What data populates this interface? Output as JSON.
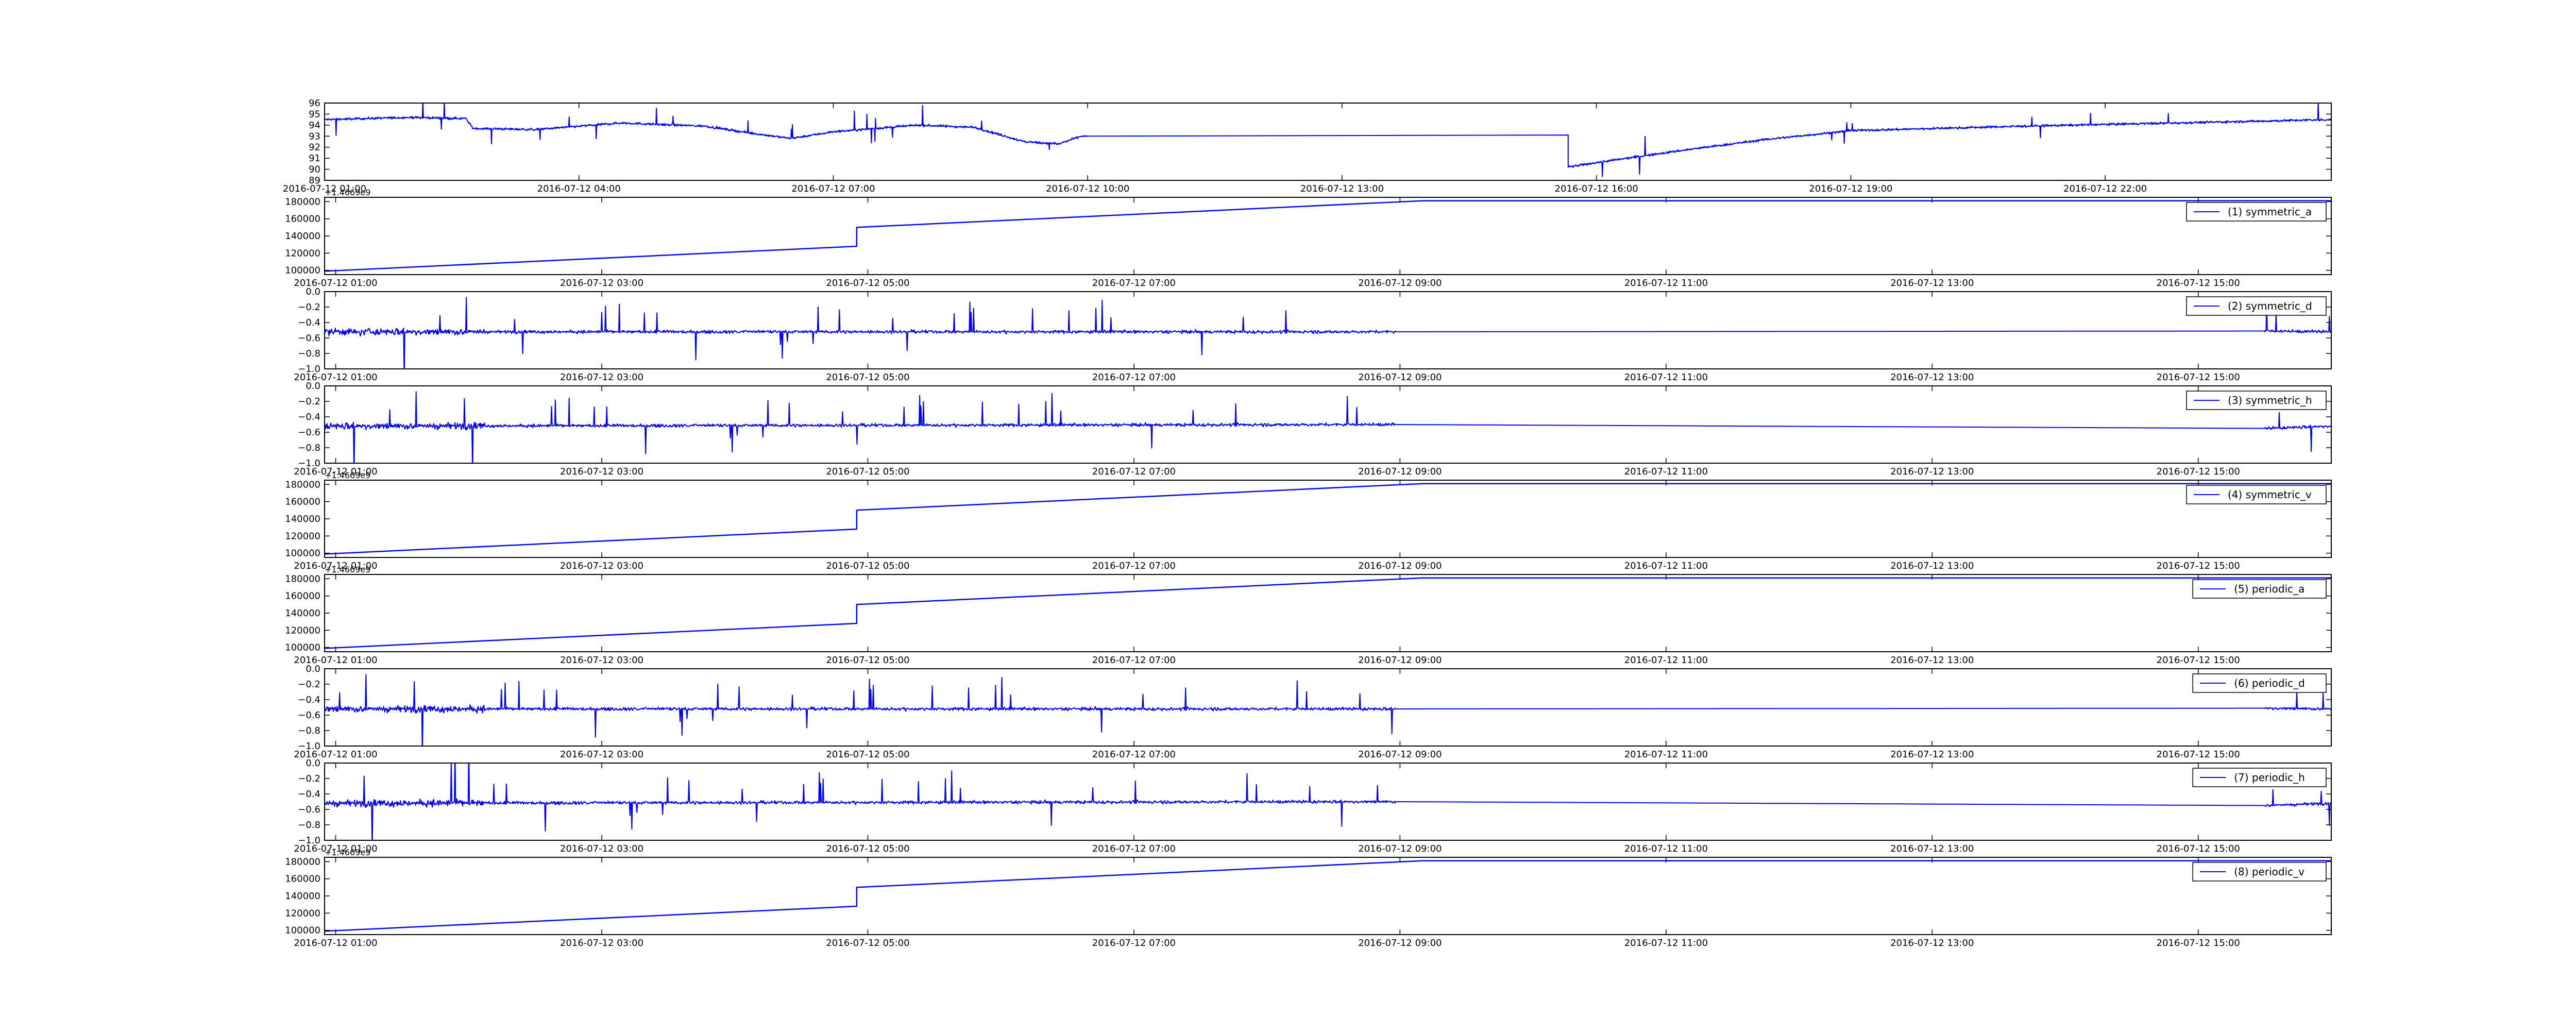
{
  "chart_data": [
    {
      "type": "line",
      "title": "",
      "xlabel": "",
      "ylabel": "",
      "x_range": [
        "2016-07-12 01:00",
        "2016-07-13 00:40"
      ],
      "ylim": [
        89,
        96
      ],
      "x_ticks": [
        "2016-07-12 01:00",
        "2016-07-12 04:00",
        "2016-07-12 07:00",
        "2016-07-12 10:00",
        "2016-07-12 13:00",
        "2016-07-12 16:00",
        "2016-07-12 19:00",
        "2016-07-12 22:00"
      ],
      "y_ticks": [
        89,
        90,
        91,
        92,
        93,
        94,
        95,
        96
      ],
      "grid": false,
      "legend": null,
      "series": [
        {
          "color": "#0000ff",
          "noise": 0.5,
          "spike_prob": 0.01,
          "points": [
            [
              "2016-07-12 01:00",
              94.5
            ],
            [
              "2016-07-12 02:00",
              94.7
            ],
            [
              "2016-07-12 02:40",
              94.6
            ],
            [
              "2016-07-12 02:45",
              93.7
            ],
            [
              "2016-07-12 03:30",
              93.6
            ],
            [
              "2016-07-12 04:30",
              94.2
            ],
            [
              "2016-07-12 05:30",
              93.9
            ],
            [
              "2016-07-12 06:00",
              93.3
            ],
            [
              "2016-07-12 06:30",
              92.8
            ],
            [
              "2016-07-12 07:00",
              93.4
            ],
            [
              "2016-07-12 08:00",
              94.0
            ],
            [
              "2016-07-12 08:40",
              93.8
            ],
            [
              "2016-07-12 09:15",
              92.5
            ],
            [
              "2016-07-12 09:40",
              92.3
            ],
            [
              "2016-07-12 09:55",
              93.0
            ],
            [
              "2016-07-12 10:00",
              93.0
            ],
            [
              "2016-07-12 15:40",
              93.1
            ],
            [
              "2016-07-12 15:40",
              90.2
            ],
            [
              "2016-07-12 16:00",
              90.6
            ],
            [
              "2016-07-12 17:00",
              91.7
            ],
            [
              "2016-07-12 18:00",
              92.7
            ],
            [
              "2016-07-12 19:00",
              93.5
            ],
            [
              "2016-07-12 21:00",
              93.9
            ],
            [
              "2016-07-13 00:40",
              94.5
            ]
          ],
          "noise_skip": [
            [
              "2016-07-12 10:00",
              "2016-07-12 15:40"
            ]
          ]
        }
      ]
    },
    {
      "type": "line",
      "title": "",
      "xlabel": "",
      "ylabel": "",
      "y_offset_label": "+1.4669e9",
      "x_range": [
        "2016-07-12 00:55",
        "2016-07-12 16:00"
      ],
      "ylim": [
        95000,
        185000
      ],
      "x_ticks": [
        "2016-07-12 01:00",
        "2016-07-12 03:00",
        "2016-07-12 05:00",
        "2016-07-12 07:00",
        "2016-07-12 09:00",
        "2016-07-12 11:00",
        "2016-07-12 13:00",
        "2016-07-12 15:00"
      ],
      "y_ticks": [
        100000,
        120000,
        140000,
        160000,
        180000
      ],
      "grid": false,
      "legend": "top-right",
      "series": [
        {
          "name": "(1) symmetric_a",
          "color": "#0000ff",
          "points": [
            [
              "2016-07-12 00:55",
              99000
            ],
            [
              "2016-07-12 04:55",
              128000
            ],
            [
              "2016-07-12 04:55",
              150000
            ],
            [
              "2016-07-12 09:10",
              181000
            ],
            [
              "2016-07-12 16:00",
              181000
            ]
          ]
        }
      ]
    },
    {
      "type": "line",
      "title": "",
      "xlabel": "",
      "ylabel": "",
      "x_range": [
        "2016-07-12 00:55",
        "2016-07-12 16:00"
      ],
      "ylim": [
        -1.0,
        0.0
      ],
      "x_ticks": [
        "2016-07-12 01:00",
        "2016-07-12 03:00",
        "2016-07-12 05:00",
        "2016-07-12 07:00",
        "2016-07-12 09:00",
        "2016-07-12 11:00",
        "2016-07-12 13:00",
        "2016-07-12 15:00"
      ],
      "y_ticks": [
        -1.0,
        -0.8,
        -0.6,
        -0.4,
        -0.2,
        0.0
      ],
      "grid": false,
      "legend": "top-right",
      "series": [
        {
          "name": "(2) symmetric_d",
          "color": "#0000ff",
          "baseline": -0.52,
          "noisy_ranges": [
            [
              "2016-07-12 00:55",
              "2016-07-12 08:58"
            ],
            [
              "2016-07-12 15:30",
              "2016-07-12 16:00"
            ]
          ],
          "points": [
            [
              "2016-07-12 00:55",
              -0.52
            ],
            [
              "2016-07-12 08:58",
              -0.52
            ],
            [
              "2016-07-12 15:30",
              -0.51
            ],
            [
              "2016-07-12 16:00",
              -0.52
            ]
          ]
        }
      ]
    },
    {
      "type": "line",
      "title": "",
      "xlabel": "",
      "ylabel": "",
      "x_range": [
        "2016-07-12 00:55",
        "2016-07-12 16:00"
      ],
      "ylim": [
        -1.0,
        0.0
      ],
      "x_ticks": [
        "2016-07-12 01:00",
        "2016-07-12 03:00",
        "2016-07-12 05:00",
        "2016-07-12 07:00",
        "2016-07-12 09:00",
        "2016-07-12 11:00",
        "2016-07-12 13:00",
        "2016-07-12 15:00"
      ],
      "y_ticks": [
        -1.0,
        -0.8,
        -0.6,
        -0.4,
        -0.2,
        0.0
      ],
      "grid": false,
      "legend": "top-right",
      "series": [
        {
          "name": "(3) symmetric_h",
          "color": "#0000ff",
          "baseline": -0.52,
          "noisy_ranges": [
            [
              "2016-07-12 00:55",
              "2016-07-12 08:58"
            ],
            [
              "2016-07-12 15:30",
              "2016-07-12 16:00"
            ]
          ],
          "points": [
            [
              "2016-07-12 00:55",
              -0.52
            ],
            [
              "2016-07-12 08:58",
              -0.5
            ],
            [
              "2016-07-12 15:30",
              -0.55
            ],
            [
              "2016-07-12 16:00",
              -0.52
            ]
          ]
        }
      ]
    },
    {
      "type": "line",
      "title": "",
      "xlabel": "",
      "ylabel": "",
      "y_offset_label": "+1.4669e9",
      "x_range": [
        "2016-07-12 00:55",
        "2016-07-12 16:00"
      ],
      "ylim": [
        95000,
        185000
      ],
      "x_ticks": [
        "2016-07-12 01:00",
        "2016-07-12 03:00",
        "2016-07-12 05:00",
        "2016-07-12 07:00",
        "2016-07-12 09:00",
        "2016-07-12 11:00",
        "2016-07-12 13:00",
        "2016-07-12 15:00"
      ],
      "y_ticks": [
        100000,
        120000,
        140000,
        160000,
        180000
      ],
      "grid": false,
      "legend": "top-right",
      "series": [
        {
          "name": "(4) symmetric_v",
          "color": "#0000ff",
          "points": [
            [
              "2016-07-12 00:55",
              99000
            ],
            [
              "2016-07-12 04:55",
              128000
            ],
            [
              "2016-07-12 04:55",
              150000
            ],
            [
              "2016-07-12 09:10",
              181000
            ],
            [
              "2016-07-12 16:00",
              181000
            ]
          ]
        }
      ]
    },
    {
      "type": "line",
      "title": "",
      "xlabel": "",
      "ylabel": "",
      "y_offset_label": "+1.4669e9",
      "x_range": [
        "2016-07-12 00:55",
        "2016-07-12 16:00"
      ],
      "ylim": [
        95000,
        185000
      ],
      "x_ticks": [
        "2016-07-12 01:00",
        "2016-07-12 03:00",
        "2016-07-12 05:00",
        "2016-07-12 07:00",
        "2016-07-12 09:00",
        "2016-07-12 11:00",
        "2016-07-12 13:00",
        "2016-07-12 15:00"
      ],
      "y_ticks": [
        100000,
        120000,
        140000,
        160000,
        180000
      ],
      "grid": false,
      "legend": "top-right",
      "series": [
        {
          "name": "(5) periodic_a",
          "color": "#0000ff",
          "points": [
            [
              "2016-07-12 00:55",
              99000
            ],
            [
              "2016-07-12 04:55",
              128000
            ],
            [
              "2016-07-12 04:55",
              150000
            ],
            [
              "2016-07-12 09:10",
              181000
            ],
            [
              "2016-07-12 16:00",
              181000
            ]
          ]
        }
      ]
    },
    {
      "type": "line",
      "title": "",
      "xlabel": "",
      "ylabel": "",
      "x_range": [
        "2016-07-12 00:55",
        "2016-07-12 16:00"
      ],
      "ylim": [
        -1.0,
        0.0
      ],
      "x_ticks": [
        "2016-07-12 01:00",
        "2016-07-12 03:00",
        "2016-07-12 05:00",
        "2016-07-12 07:00",
        "2016-07-12 09:00",
        "2016-07-12 11:00",
        "2016-07-12 13:00",
        "2016-07-12 15:00"
      ],
      "y_ticks": [
        -1.0,
        -0.8,
        -0.6,
        -0.4,
        -0.2,
        0.0
      ],
      "grid": false,
      "legend": "top-right",
      "series": [
        {
          "name": "(6) periodic_d",
          "color": "#0000ff",
          "baseline": -0.52,
          "noisy_ranges": [
            [
              "2016-07-12 00:55",
              "2016-07-12 08:58"
            ],
            [
              "2016-07-12 15:30",
              "2016-07-12 16:00"
            ]
          ],
          "points": [
            [
              "2016-07-12 00:55",
              -0.52
            ],
            [
              "2016-07-12 08:58",
              -0.52
            ],
            [
              "2016-07-12 15:30",
              -0.51
            ],
            [
              "2016-07-12 16:00",
              -0.52
            ]
          ]
        }
      ]
    },
    {
      "type": "line",
      "title": "",
      "xlabel": "",
      "ylabel": "",
      "x_range": [
        "2016-07-12 00:55",
        "2016-07-12 16:00"
      ],
      "ylim": [
        -1.0,
        0.0
      ],
      "x_ticks": [
        "2016-07-12 01:00",
        "2016-07-12 03:00",
        "2016-07-12 05:00",
        "2016-07-12 07:00",
        "2016-07-12 09:00",
        "2016-07-12 11:00",
        "2016-07-12 13:00",
        "2016-07-12 15:00"
      ],
      "y_ticks": [
        -1.0,
        -0.8,
        -0.6,
        -0.4,
        -0.2,
        0.0
      ],
      "grid": false,
      "legend": "top-right",
      "series": [
        {
          "name": "(7) periodic_h",
          "color": "#0000ff",
          "baseline": -0.52,
          "noisy_ranges": [
            [
              "2016-07-12 00:55",
              "2016-07-12 08:58"
            ],
            [
              "2016-07-12 15:30",
              "2016-07-12 16:00"
            ]
          ],
          "points": [
            [
              "2016-07-12 00:55",
              -0.52
            ],
            [
              "2016-07-12 08:58",
              -0.5
            ],
            [
              "2016-07-12 15:30",
              -0.55
            ],
            [
              "2016-07-12 16:00",
              -0.52
            ]
          ]
        }
      ]
    },
    {
      "type": "line",
      "title": "",
      "xlabel": "",
      "ylabel": "",
      "y_offset_label": "+1.4669e9",
      "x_range": [
        "2016-07-12 00:55",
        "2016-07-12 16:00"
      ],
      "ylim": [
        95000,
        185000
      ],
      "x_ticks": [
        "2016-07-12 01:00",
        "2016-07-12 03:00",
        "2016-07-12 05:00",
        "2016-07-12 07:00",
        "2016-07-12 09:00",
        "2016-07-12 11:00",
        "2016-07-12 13:00",
        "2016-07-12 15:00"
      ],
      "y_ticks": [
        100000,
        120000,
        140000,
        160000,
        180000
      ],
      "grid": false,
      "legend": "top-right",
      "series": [
        {
          "name": "(8) periodic_v",
          "color": "#0000ff",
          "points": [
            [
              "2016-07-12 00:55",
              99000
            ],
            [
              "2016-07-12 04:55",
              128000
            ],
            [
              "2016-07-12 04:55",
              150000
            ],
            [
              "2016-07-12 09:10",
              181000
            ],
            [
              "2016-07-12 16:00",
              181000
            ]
          ]
        }
      ]
    }
  ]
}
